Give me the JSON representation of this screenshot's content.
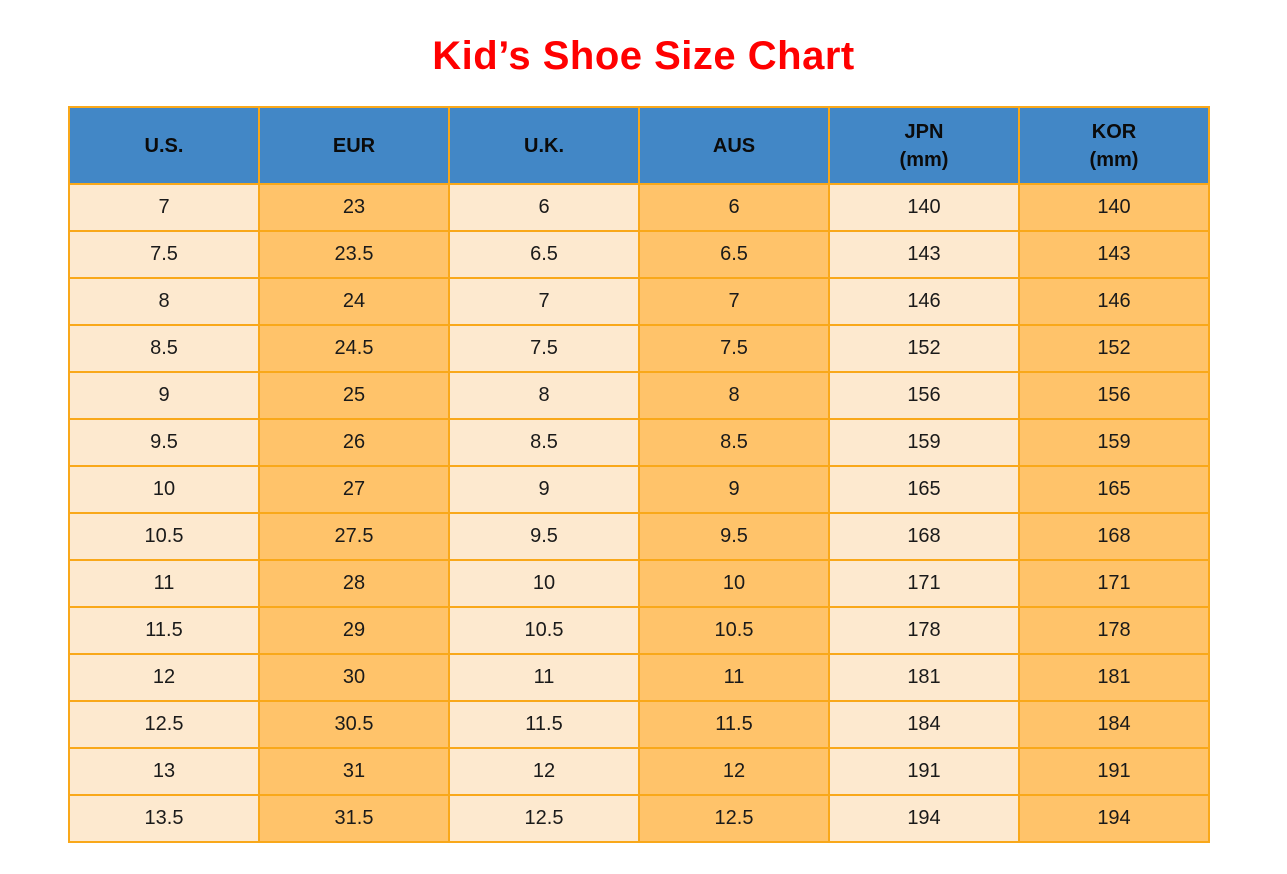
{
  "colors": {
    "title-color": "#ff0000",
    "header-bg": "#4287c6",
    "border-color": "#f9a81a",
    "col-cream": "#fde9cf",
    "col-orange": "#ffc36a"
  },
  "chart_data": {
    "type": "table",
    "title": "Kid’s Shoe Size Chart",
    "columns": [
      {
        "label": "U.S.",
        "sub": ""
      },
      {
        "label": "EUR",
        "sub": ""
      },
      {
        "label": "U.K.",
        "sub": ""
      },
      {
        "label": "AUS",
        "sub": ""
      },
      {
        "label": "JPN",
        "sub": "(mm)"
      },
      {
        "label": "KOR",
        "sub": "(mm)"
      }
    ],
    "rows": [
      [
        "7",
        "23",
        "6",
        "6",
        "140",
        "140"
      ],
      [
        "7.5",
        "23.5",
        "6.5",
        "6.5",
        "143",
        "143"
      ],
      [
        "8",
        "24",
        "7",
        "7",
        "146",
        "146"
      ],
      [
        "8.5",
        "24.5",
        "7.5",
        "7.5",
        "152",
        "152"
      ],
      [
        "9",
        "25",
        "8",
        "8",
        "156",
        "156"
      ],
      [
        "9.5",
        "26",
        "8.5",
        "8.5",
        "159",
        "159"
      ],
      [
        "10",
        "27",
        "9",
        "9",
        "165",
        "165"
      ],
      [
        "10.5",
        "27.5",
        "9.5",
        "9.5",
        "168",
        "168"
      ],
      [
        "11",
        "28",
        "10",
        "10",
        "171",
        "171"
      ],
      [
        "11.5",
        "29",
        "10.5",
        "10.5",
        "178",
        "178"
      ],
      [
        "12",
        "30",
        "11",
        "11",
        "181",
        "181"
      ],
      [
        "12.5",
        "30.5",
        "11.5",
        "11.5",
        "184",
        "184"
      ],
      [
        "13",
        "31",
        "12",
        "12",
        "191",
        "191"
      ],
      [
        "13.5",
        "31.5",
        "12.5",
        "12.5",
        "194",
        "194"
      ]
    ]
  }
}
